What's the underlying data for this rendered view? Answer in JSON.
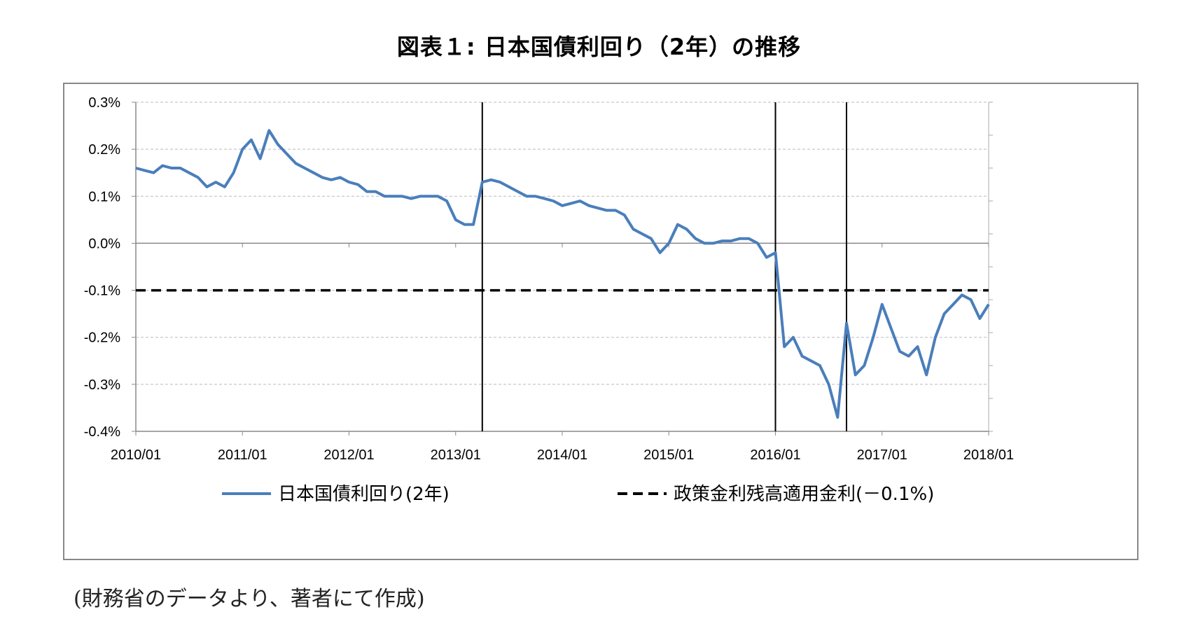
{
  "chart_data": {
    "type": "line",
    "title": "図表１: 日本国債利回り（2年）の推移",
    "xlabel": "",
    "ylabel": "",
    "x_ticks": [
      "2010/01",
      "2011/01",
      "2012/01",
      "2013/01",
      "2014/01",
      "2015/01",
      "2016/01",
      "2017/01",
      "2018/01"
    ],
    "y_ticks": [
      "0.3%",
      "0.2%",
      "0.1%",
      "0.0%",
      "-0.1%",
      "-0.2%",
      "-0.3%",
      "-0.4%"
    ],
    "ylim": [
      -0.4,
      0.3
    ],
    "xlim": [
      "2010/01",
      "2018/01"
    ],
    "grid": "horizontal dashed",
    "legend_position": "bottom",
    "series": [
      {
        "name": "日本国債利回り(2年)",
        "color": "#4a7ebb",
        "style": "solid",
        "points": [
          [
            "2010/01",
            0.16
          ],
          [
            "2010/02",
            0.155
          ],
          [
            "2010/03",
            0.15
          ],
          [
            "2010/04",
            0.165
          ],
          [
            "2010/05",
            0.16
          ],
          [
            "2010/06",
            0.16
          ],
          [
            "2010/07",
            0.15
          ],
          [
            "2010/08",
            0.14
          ],
          [
            "2010/09",
            0.12
          ],
          [
            "2010/10",
            0.13
          ],
          [
            "2010/11",
            0.12
          ],
          [
            "2010/12",
            0.15
          ],
          [
            "2011/01",
            0.2
          ],
          [
            "2011/02",
            0.22
          ],
          [
            "2011/03",
            0.18
          ],
          [
            "2011/04",
            0.24
          ],
          [
            "2011/05",
            0.21
          ],
          [
            "2011/06",
            0.19
          ],
          [
            "2011/07",
            0.17
          ],
          [
            "2011/08",
            0.16
          ],
          [
            "2011/09",
            0.15
          ],
          [
            "2011/10",
            0.14
          ],
          [
            "2011/11",
            0.135
          ],
          [
            "2011/12",
            0.14
          ],
          [
            "2012/01",
            0.13
          ],
          [
            "2012/02",
            0.125
          ],
          [
            "2012/03",
            0.11
          ],
          [
            "2012/04",
            0.11
          ],
          [
            "2012/05",
            0.1
          ],
          [
            "2012/06",
            0.1
          ],
          [
            "2012/07",
            0.1
          ],
          [
            "2012/08",
            0.095
          ],
          [
            "2012/09",
            0.1
          ],
          [
            "2012/10",
            0.1
          ],
          [
            "2012/11",
            0.1
          ],
          [
            "2012/12",
            0.09
          ],
          [
            "2013/01",
            0.05
          ],
          [
            "2013/02",
            0.04
          ],
          [
            "2013/03",
            0.04
          ],
          [
            "2013/04",
            0.13
          ],
          [
            "2013/05",
            0.135
          ],
          [
            "2013/06",
            0.13
          ],
          [
            "2013/07",
            0.12
          ],
          [
            "2013/08",
            0.11
          ],
          [
            "2013/09",
            0.1
          ],
          [
            "2013/10",
            0.1
          ],
          [
            "2013/11",
            0.095
          ],
          [
            "2013/12",
            0.09
          ],
          [
            "2014/01",
            0.08
          ],
          [
            "2014/02",
            0.085
          ],
          [
            "2014/03",
            0.09
          ],
          [
            "2014/04",
            0.08
          ],
          [
            "2014/05",
            0.075
          ],
          [
            "2014/06",
            0.07
          ],
          [
            "2014/07",
            0.07
          ],
          [
            "2014/08",
            0.06
          ],
          [
            "2014/09",
            0.03
          ],
          [
            "2014/10",
            0.02
          ],
          [
            "2014/11",
            0.01
          ],
          [
            "2014/12",
            -0.02
          ],
          [
            "2015/01",
            0.0
          ],
          [
            "2015/02",
            0.04
          ],
          [
            "2015/03",
            0.03
          ],
          [
            "2015/04",
            0.01
          ],
          [
            "2015/05",
            0.0
          ],
          [
            "2015/06",
            0.0
          ],
          [
            "2015/07",
            0.005
          ],
          [
            "2015/08",
            0.005
          ],
          [
            "2015/09",
            0.01
          ],
          [
            "2015/10",
            0.01
          ],
          [
            "2015/11",
            0.0
          ],
          [
            "2015/12",
            -0.03
          ],
          [
            "2016/01",
            -0.02
          ],
          [
            "2016/02",
            -0.22
          ],
          [
            "2016/03",
            -0.2
          ],
          [
            "2016/04",
            -0.24
          ],
          [
            "2016/05",
            -0.25
          ],
          [
            "2016/06",
            -0.26
          ],
          [
            "2016/07",
            -0.3
          ],
          [
            "2016/08",
            -0.37
          ],
          [
            "2016/09",
            -0.17
          ],
          [
            "2016/10",
            -0.28
          ],
          [
            "2016/11",
            -0.26
          ],
          [
            "2016/12",
            -0.2
          ],
          [
            "2017/01",
            -0.13
          ],
          [
            "2017/02",
            -0.18
          ],
          [
            "2017/03",
            -0.23
          ],
          [
            "2017/04",
            -0.24
          ],
          [
            "2017/05",
            -0.22
          ],
          [
            "2017/06",
            -0.28
          ],
          [
            "2017/07",
            -0.2
          ],
          [
            "2017/08",
            -0.15
          ],
          [
            "2017/09",
            -0.13
          ],
          [
            "2017/10",
            -0.11
          ],
          [
            "2017/11",
            -0.12
          ],
          [
            "2017/12",
            -0.16
          ],
          [
            "2018/01",
            -0.13
          ]
        ]
      },
      {
        "name": "政策金利残高適用金利(－0.1%)",
        "color": "#000000",
        "style": "dashed",
        "points": [
          [
            "2010/01",
            -0.1
          ],
          [
            "2018/01",
            -0.1
          ]
        ]
      }
    ],
    "vertical_markers": [
      "2013/04",
      "2016/01",
      "2016/09"
    ]
  },
  "source_note": "(財務省のデータより、著者にて作成)"
}
